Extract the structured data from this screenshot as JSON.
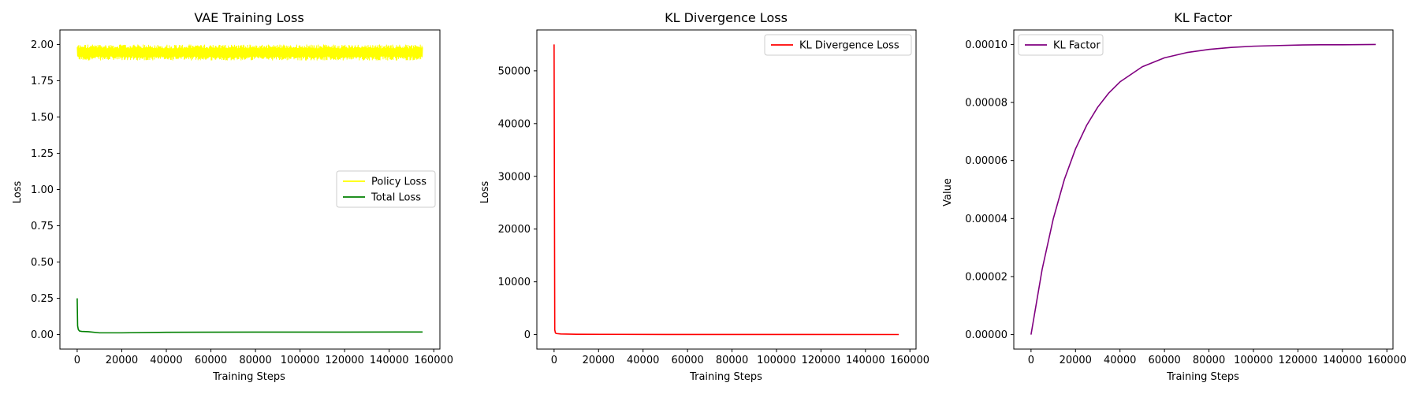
{
  "chart_data": [
    {
      "type": "line",
      "title": "VAE Training Loss",
      "xlabel": "Training Steps",
      "ylabel": "Loss",
      "xlim": [
        -7750,
        162750
      ],
      "ylim": [
        -0.1,
        2.1
      ],
      "xticks": [
        0,
        20000,
        40000,
        60000,
        80000,
        100000,
        120000,
        140000,
        160000
      ],
      "xtick_labels": [
        "0",
        "20000",
        "40000",
        "60000",
        "80000",
        "100000",
        "120000",
        "140000",
        "160000"
      ],
      "yticks": [
        0.0,
        0.25,
        0.5,
        0.75,
        1.0,
        1.25,
        1.5,
        1.75,
        2.0
      ],
      "ytick_labels": [
        "0.00",
        "0.25",
        "0.50",
        "0.75",
        "1.00",
        "1.25",
        "1.50",
        "1.75",
        "2.00"
      ],
      "grid": false,
      "legend": "center right",
      "series": [
        {
          "name": "Policy Loss",
          "color": "#ffff00",
          "style": "noisy-band",
          "x_range": [
            0,
            155000
          ],
          "y_min": 1.89,
          "y_max": 2.0
        },
        {
          "name": "Total Loss",
          "color": "#008000",
          "style": "line",
          "x": [
            0,
            200,
            500,
            1000,
            2000,
            5000,
            10000,
            20000,
            40000,
            80000,
            120000,
            155000
          ],
          "y": [
            0.25,
            0.06,
            0.035,
            0.025,
            0.022,
            0.02,
            0.012,
            0.012,
            0.016,
            0.017,
            0.017,
            0.018
          ]
        }
      ]
    },
    {
      "type": "line",
      "title": "KL Divergence Loss",
      "xlabel": "Training Steps",
      "ylabel": "Loss",
      "xlim": [
        -7750,
        162750
      ],
      "ylim": [
        -2750,
        57750
      ],
      "xticks": [
        0,
        20000,
        40000,
        60000,
        80000,
        100000,
        120000,
        140000,
        160000
      ],
      "xtick_labels": [
        "0",
        "20000",
        "40000",
        "60000",
        "80000",
        "100000",
        "120000",
        "140000",
        "160000"
      ],
      "yticks": [
        0,
        10000,
        20000,
        30000,
        40000,
        50000
      ],
      "ytick_labels": [
        "0",
        "10000",
        "20000",
        "30000",
        "40000",
        "50000"
      ],
      "grid": false,
      "legend": "upper right",
      "series": [
        {
          "name": "KL Divergence Loss",
          "color": "#ff0000",
          "style": "line",
          "x": [
            0,
            300,
            600,
            1000,
            3000,
            10000,
            50000,
            100000,
            155000
          ],
          "y": [
            55000,
            900,
            300,
            200,
            120,
            60,
            30,
            20,
            15
          ]
        }
      ]
    },
    {
      "type": "line",
      "title": "KL Factor",
      "xlabel": "Training Steps",
      "ylabel": "Value",
      "xlim": [
        -7750,
        162750
      ],
      "ylim": [
        -5e-06,
        0.000105
      ],
      "xticks": [
        0,
        20000,
        40000,
        60000,
        80000,
        100000,
        120000,
        140000,
        160000
      ],
      "xtick_labels": [
        "0",
        "20000",
        "40000",
        "60000",
        "80000",
        "100000",
        "120000",
        "140000",
        "160000"
      ],
      "yticks": [
        0,
        2e-05,
        4e-05,
        6e-05,
        8e-05,
        0.0001
      ],
      "ytick_labels": [
        "0.00000",
        "0.00002",
        "0.00004",
        "0.00006",
        "0.00008",
        "0.00010"
      ],
      "grid": false,
      "legend": "upper left",
      "series": [
        {
          "name": "KL Factor",
          "color": "#800080",
          "style": "line",
          "x": [
            0,
            5000,
            10000,
            15000,
            20000,
            25000,
            30000,
            35000,
            40000,
            50000,
            60000,
            70000,
            80000,
            90000,
            100000,
            110000,
            120000,
            130000,
            140000,
            155000
          ],
          "y": [
            0,
            2.25e-05,
            3.99e-05,
            5.35e-05,
            6.4e-05,
            7.21e-05,
            7.84e-05,
            8.33e-05,
            8.71e-05,
            9.23e-05,
            9.54e-05,
            9.72e-05,
            9.83e-05,
            9.898e-05,
            9.94e-05,
            9.96e-05,
            9.98e-05,
            9.99e-05,
            9.99e-05,
            0.0001
          ]
        }
      ]
    }
  ]
}
